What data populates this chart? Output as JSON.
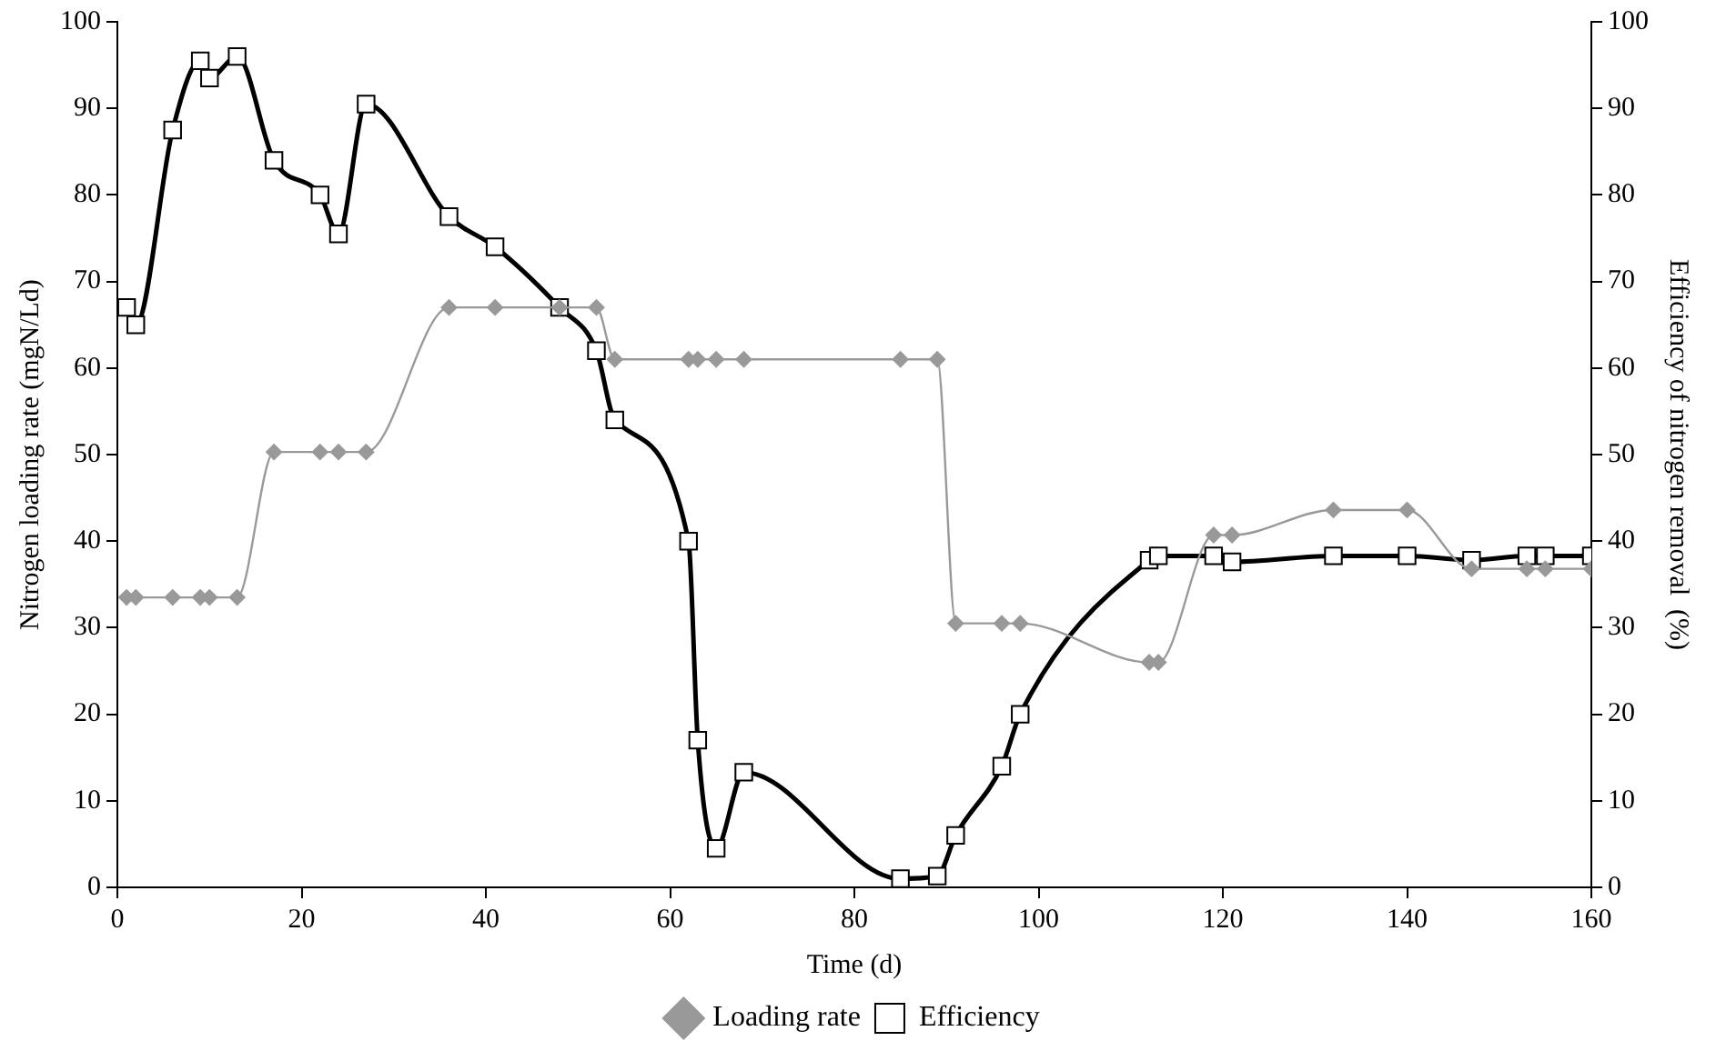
{
  "chart_data": {
    "type": "line",
    "xlabel": "Time (d)",
    "ylabel": "Nitrogen loading rate (mgN/Ld)",
    "y2label": "Efficiency of nitrogen removal  (%)",
    "xlim": [
      0,
      160
    ],
    "xticks": [
      0,
      20,
      40,
      60,
      80,
      100,
      120,
      140,
      160
    ],
    "ylim": [
      0,
      100
    ],
    "yticks": [
      0,
      10,
      20,
      30,
      40,
      50,
      60,
      70,
      80,
      90,
      100
    ],
    "y2lim": [
      0,
      100
    ],
    "y2ticks": [
      0,
      10,
      20,
      30,
      40,
      50,
      60,
      70,
      80,
      90,
      100
    ],
    "grid": false,
    "legend": "bottom",
    "series": [
      {
        "name": "Loading rate",
        "color": "#999999",
        "marker": "diamond",
        "x": [
          1,
          2,
          6,
          9,
          10,
          13,
          17,
          22,
          24,
          27,
          36,
          41,
          48,
          52,
          54,
          62,
          63,
          65,
          68,
          85,
          89,
          91,
          96,
          98,
          112,
          113,
          119,
          121,
          132,
          140,
          147,
          153,
          155,
          160
        ],
        "values": [
          33.5,
          33.5,
          33.5,
          33.5,
          33.5,
          33.5,
          50.3,
          50.3,
          50.3,
          50.3,
          67,
          67,
          67,
          67,
          61,
          61,
          61,
          61,
          61,
          61,
          61,
          30.5,
          30.5,
          30.5,
          26,
          26,
          40.7,
          40.7,
          43.6,
          43.6,
          36.8,
          36.8,
          36.8,
          36.8
        ]
      },
      {
        "name": "Efficiency",
        "color": "#000000",
        "marker": "square",
        "axis": "y2",
        "x": [
          1,
          2,
          6,
          9,
          10,
          13,
          17,
          22,
          24,
          27,
          36,
          41,
          48,
          52,
          54,
          62,
          63,
          65,
          68,
          85,
          89,
          91,
          96,
          98,
          112,
          113,
          119,
          121,
          132,
          140,
          147,
          153,
          155,
          160
        ],
        "values": [
          67,
          65,
          87.5,
          95.5,
          93.5,
          96,
          84,
          80,
          75.5,
          90.5,
          77.5,
          74,
          67,
          62,
          54,
          40,
          17,
          4.5,
          13.3,
          1,
          1.3,
          6,
          14,
          20,
          37.8,
          38.3,
          38.3,
          37.6,
          38.3,
          38.3,
          37.8,
          38.3,
          38.3,
          38.3
        ]
      }
    ]
  }
}
